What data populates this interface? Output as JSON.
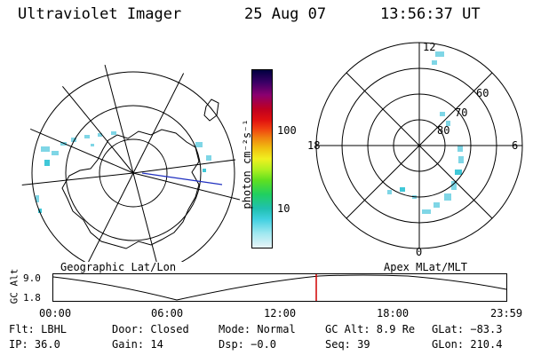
{
  "header": {
    "title": "Ultraviolet Imager",
    "date": "25 Aug 07",
    "time": "13:56:37 UT"
  },
  "left_panel": {
    "caption": "Geographic Lat/Lon"
  },
  "right_panel": {
    "caption": "Apex MLat/MLT",
    "mlt_labels": [
      "12",
      "18",
      "6",
      "0"
    ],
    "mlat_labels": [
      "60",
      "70",
      "80"
    ]
  },
  "colorbar": {
    "unit_label": "photon cm⁻²s⁻¹",
    "ticks": [
      "100",
      "10"
    ],
    "colors": [
      "#000040",
      "#3b0066",
      "#8b0070",
      "#c00020",
      "#e01010",
      "#f04010",
      "#f08010",
      "#f0c010",
      "#f0f020",
      "#b0f020",
      "#60e020",
      "#20d060",
      "#20c0b0",
      "#40d0e0",
      "#a0e8f0",
      "#e8f4f8"
    ]
  },
  "timeline": {
    "y_label": "GC Alt",
    "y_ticks": [
      "9.0",
      "1.8"
    ],
    "x_ticks": [
      "00:00",
      "06:00",
      "12:00",
      "18:00",
      "23:59"
    ],
    "current_marker_color": "#d00000"
  },
  "status": {
    "row1": [
      "Flt: LBHL",
      "Door: Closed",
      "Mode: Normal",
      "GC Alt: 8.9 Re",
      "GLat: −83.3"
    ],
    "row2": [
      "IP: 36.0",
      "Gain: 14",
      "Dsp:   −0.0",
      "Seq: 39",
      "GLon: 210.4"
    ]
  }
}
